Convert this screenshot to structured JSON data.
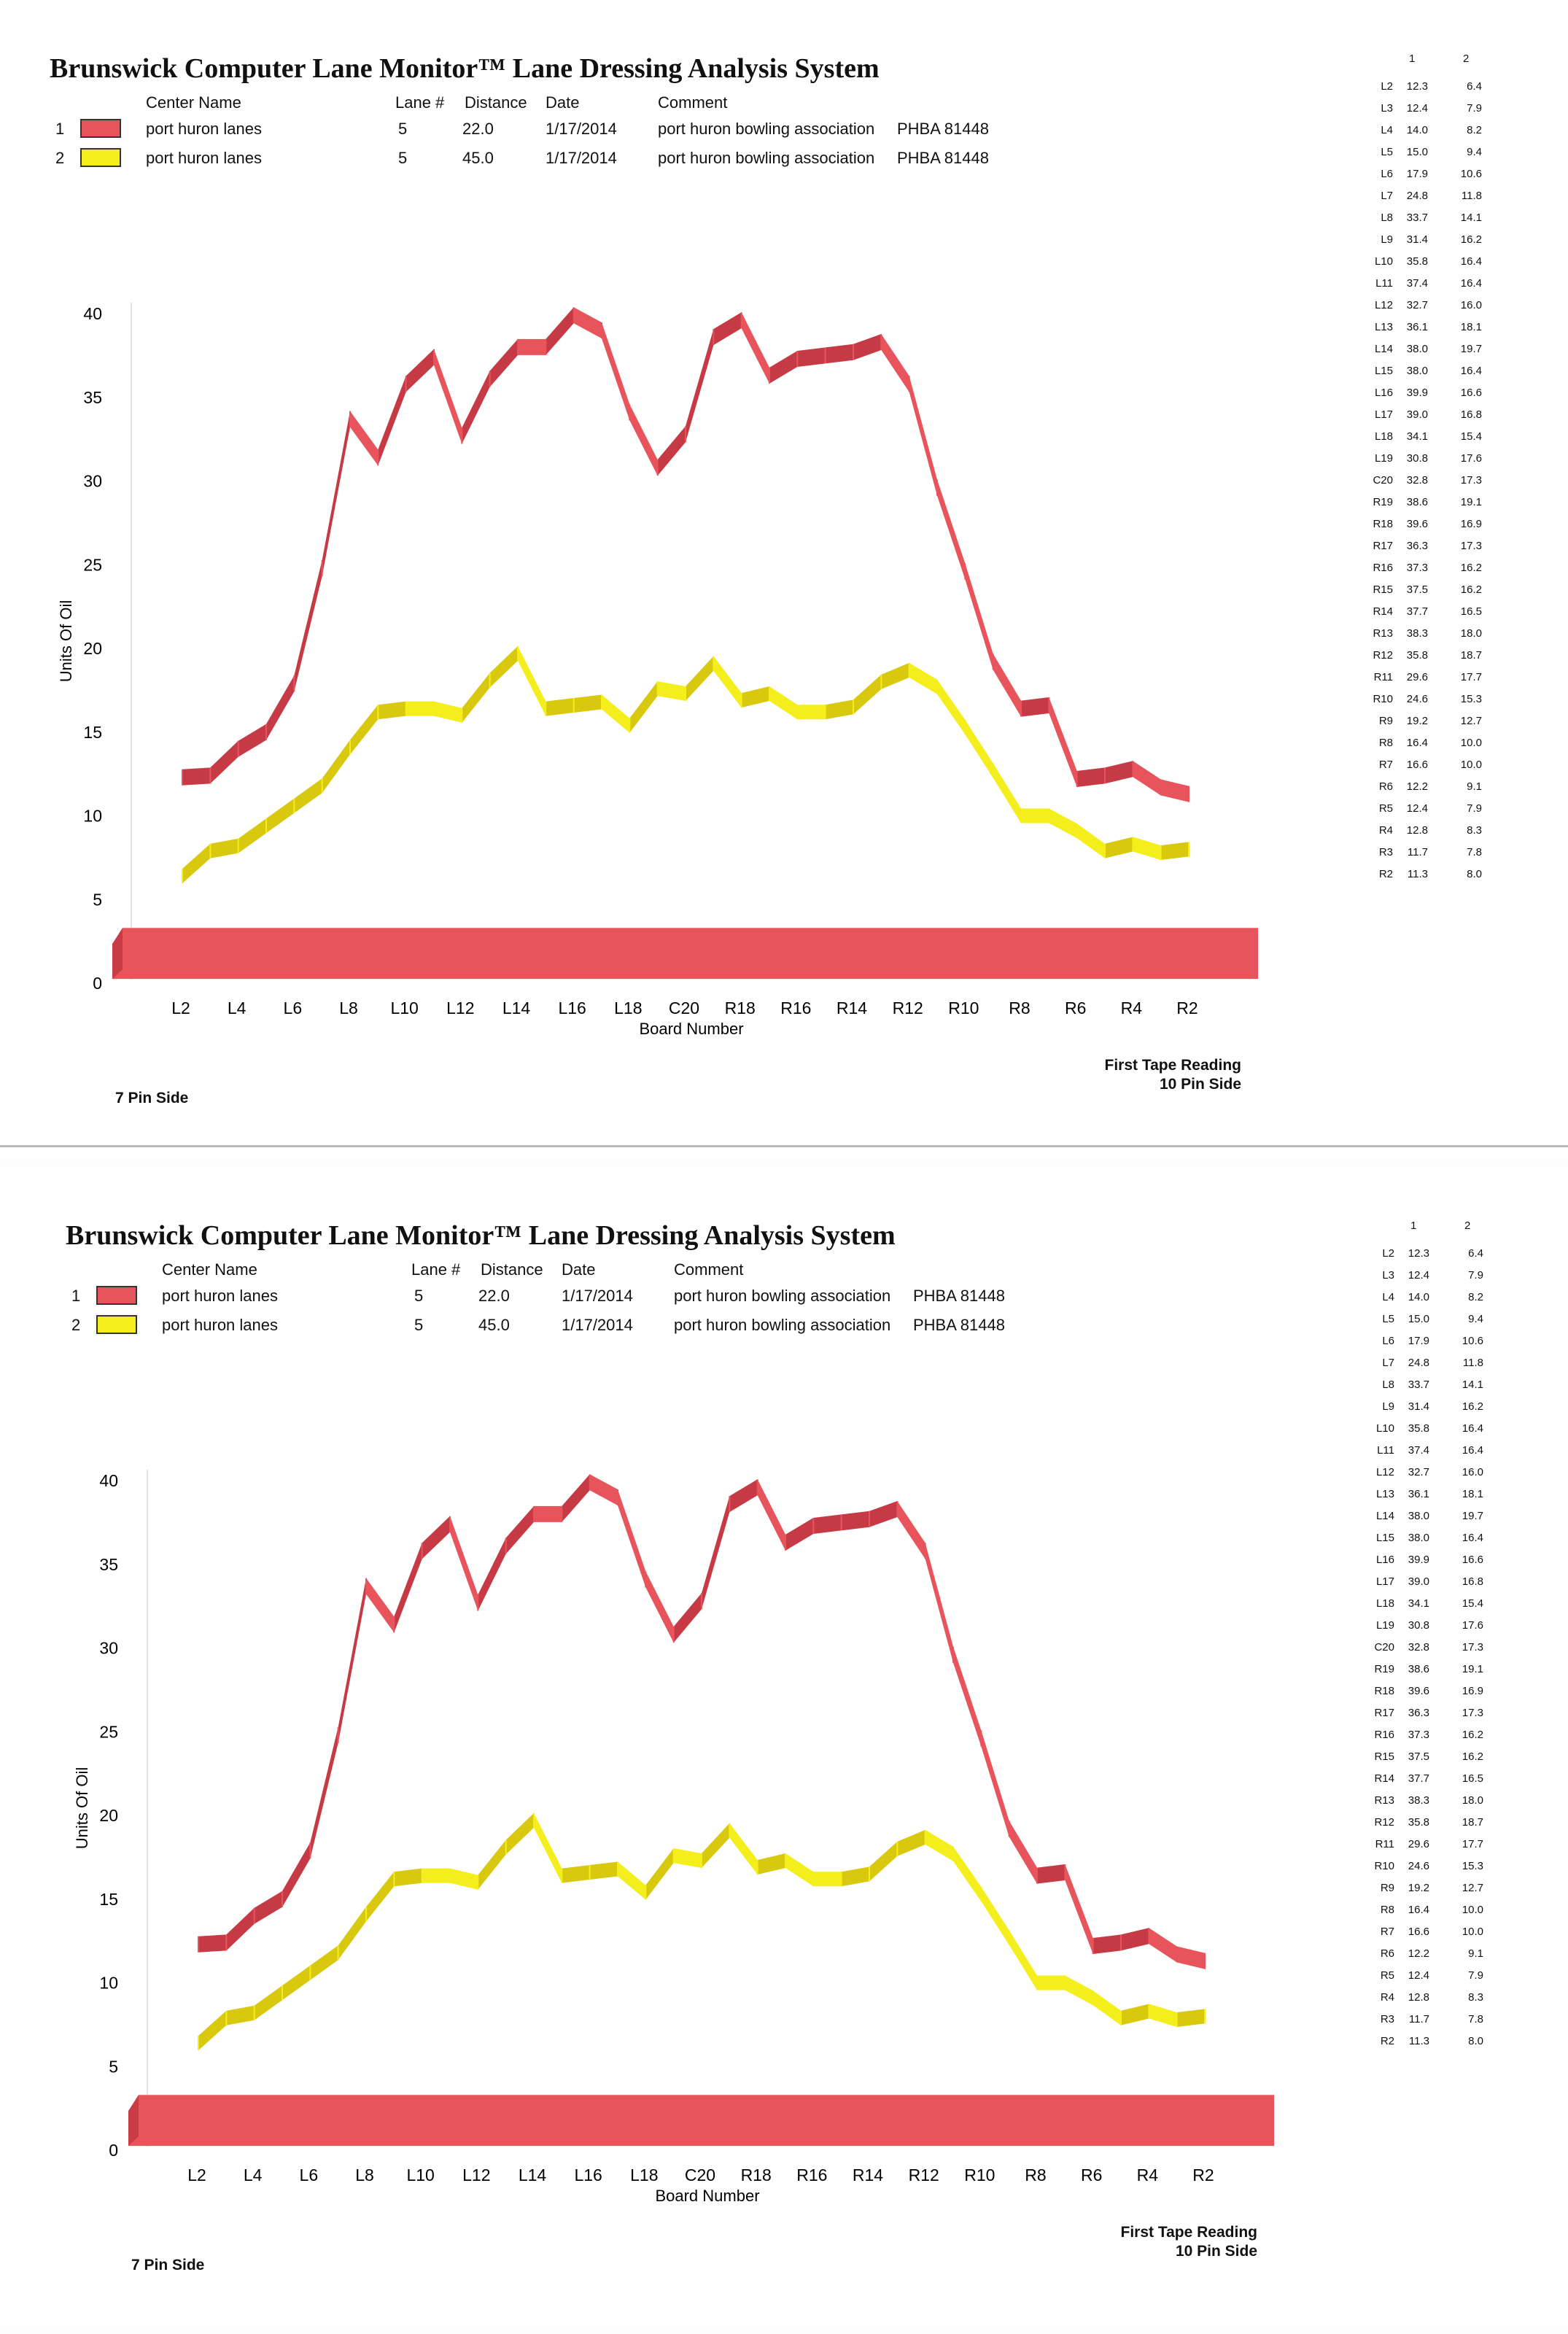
{
  "report": {
    "title": "Brunswick Computer Lane Monitor™ Lane Dressing Analysis System",
    "columns": {
      "center_name": "Center Name",
      "lane": "Lane #",
      "distance": "Distance",
      "date": "Date",
      "comment": "Comment"
    },
    "rows": [
      {
        "index": "1",
        "center_name": "port huron lanes",
        "lane": "5",
        "distance": "22.0",
        "date": "1/17/2014",
        "comment": "port huron bowling association",
        "code": "PHBA 81448",
        "color": "#e8545c"
      },
      {
        "index": "2",
        "center_name": "port huron lanes",
        "lane": "5",
        "distance": "45.0",
        "date": "1/17/2014",
        "comment": "port huron bowling association",
        "code": "PHBA 81448",
        "color": "#f4ee1c"
      }
    ],
    "pin_side_left": "7 Pin Side",
    "reading_line1": "First Tape Reading",
    "reading_line2": "10 Pin Side"
  },
  "table": {
    "col1": "1",
    "col2": "2",
    "boards": [
      "L2",
      "L3",
      "L4",
      "L5",
      "L6",
      "L7",
      "L8",
      "L9",
      "L10",
      "L11",
      "L12",
      "L13",
      "L14",
      "L15",
      "L16",
      "L17",
      "L18",
      "L19",
      "C20",
      "R19",
      "R18",
      "R17",
      "R16",
      "R15",
      "R14",
      "R13",
      "R12",
      "R11",
      "R10",
      "R9",
      "R8",
      "R7",
      "R6",
      "R5",
      "R4",
      "R3",
      "R2"
    ],
    "values1": [
      "12.3",
      "12.4",
      "14.0",
      "15.0",
      "17.9",
      "24.8",
      "33.7",
      "31.4",
      "35.8",
      "37.4",
      "32.7",
      "36.1",
      "38.0",
      "38.0",
      "39.9",
      "39.0",
      "34.1",
      "30.8",
      "32.8",
      "38.6",
      "39.6",
      "36.3",
      "37.3",
      "37.5",
      "37.7",
      "38.3",
      "35.8",
      "29.6",
      "24.6",
      "19.2",
      "16.4",
      "16.6",
      "12.2",
      "12.4",
      "12.8",
      "11.7",
      "11.3"
    ],
    "values2": [
      "6.4",
      "7.9",
      "8.2",
      "9.4",
      "10.6",
      "11.8",
      "14.1",
      "16.2",
      "16.4",
      "16.4",
      "16.0",
      "18.1",
      "19.7",
      "16.4",
      "16.6",
      "16.8",
      "15.4",
      "17.6",
      "17.3",
      "19.1",
      "16.9",
      "17.3",
      "16.2",
      "16.2",
      "16.5",
      "18.0",
      "18.7",
      "17.7",
      "15.3",
      "12.7",
      "10.0",
      "10.0",
      "9.1",
      "7.9",
      "8.3",
      "7.8",
      "8.0"
    ]
  },
  "chart_data": {
    "type": "area",
    "xlabel": "Board Number",
    "ylabel": "Units Of Oil",
    "ylim": [
      0,
      40
    ],
    "yticks": [
      "0",
      "5",
      "10",
      "15",
      "20",
      "25",
      "30",
      "35",
      "40"
    ],
    "xticks": [
      "L2",
      "L4",
      "L6",
      "L8",
      "L10",
      "L12",
      "L14",
      "L16",
      "L18",
      "C20",
      "R18",
      "R16",
      "R14",
      "R12",
      "R10",
      "R8",
      "R6",
      "R4",
      "R2"
    ],
    "categories": [
      "L2",
      "L3",
      "L4",
      "L5",
      "L6",
      "L7",
      "L8",
      "L9",
      "L10",
      "L11",
      "L12",
      "L13",
      "L14",
      "L15",
      "L16",
      "L17",
      "L18",
      "L19",
      "C20",
      "R19",
      "R18",
      "R17",
      "R16",
      "R15",
      "R14",
      "R13",
      "R12",
      "R11",
      "R10",
      "R9",
      "R8",
      "R7",
      "R6",
      "R5",
      "R4",
      "R3",
      "R2"
    ],
    "series": [
      {
        "color": "#e8545c",
        "values": [
          12.3,
          12.4,
          14.0,
          15.0,
          17.9,
          24.8,
          33.7,
          31.4,
          35.8,
          37.4,
          32.7,
          36.1,
          38.0,
          38.0,
          39.9,
          39.0,
          34.1,
          30.8,
          32.8,
          38.6,
          39.6,
          36.3,
          37.3,
          37.5,
          37.7,
          38.3,
          35.8,
          29.6,
          24.6,
          19.2,
          16.4,
          16.6,
          12.2,
          12.4,
          12.8,
          11.7,
          11.3
        ]
      },
      {
        "color": "#f4ee1c",
        "values": [
          6.4,
          7.9,
          8.2,
          9.4,
          10.6,
          11.8,
          14.1,
          16.2,
          16.4,
          16.4,
          16.0,
          18.1,
          19.7,
          16.4,
          16.6,
          16.8,
          15.4,
          17.6,
          17.3,
          19.1,
          16.9,
          17.3,
          16.2,
          16.2,
          16.5,
          18.0,
          18.7,
          17.7,
          15.3,
          12.7,
          10.0,
          10.0,
          9.1,
          7.9,
          8.3,
          7.8,
          8.0
        ]
      }
    ],
    "base_band": {
      "color": "#e8545c"
    }
  }
}
